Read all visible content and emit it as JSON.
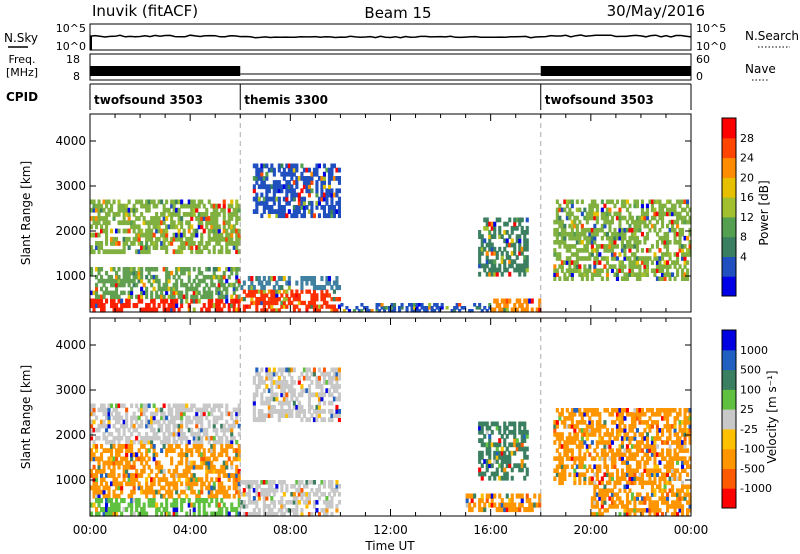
{
  "header": {
    "site": "Inuvik (fitACF)",
    "beam": "Beam 15",
    "date": "30/May/2016"
  },
  "summary": {
    "nsky_label": "N.Sky",
    "nsky_ticks": [
      "10^5",
      "10^0"
    ],
    "nsearch_label": "N.Search",
    "nsearch_ticks": [
      "10^5",
      "10^0"
    ],
    "freq_label_1": "Freq.",
    "freq_label_2": "[MHz]",
    "freq_ticks": [
      "18",
      "8"
    ],
    "nave_label": "Nave",
    "nave_ticks": [
      "60",
      "0"
    ],
    "cpid_label": "CPID",
    "cpid_segments": [
      {
        "name": "twofsound 3503",
        "start_hour": 0,
        "end_hour": 6
      },
      {
        "name": "themis 3300",
        "start_hour": 6,
        "end_hour": 18
      },
      {
        "name": "twofsound 3503",
        "start_hour": 18,
        "end_hour": 24
      }
    ]
  },
  "chart_data": [
    {
      "type": "heatmap",
      "name": "power",
      "ylabel": "Slant Range [km]",
      "xlabel": "",
      "xlim": [
        0,
        24
      ],
      "ylim": [
        200,
        4600
      ],
      "yticks": [
        "1000",
        "2000",
        "3000",
        "4000"
      ],
      "colorbar_label": "Power [dB]",
      "colorbar_ticks": [
        "28",
        "24",
        "20",
        "16",
        "12",
        "8",
        "4"
      ],
      "colorbar_colors": [
        "#0000e6",
        "#2050c0",
        "#3a8060",
        "#55a050",
        "#a0c030",
        "#e6c000",
        "#ff8c00",
        "#ff4500",
        "#ff0000"
      ],
      "regions": [
        {
          "t0": 0,
          "t1": 6,
          "r0": 200,
          "r1": 500,
          "color": "#ff2000"
        },
        {
          "t0": 0,
          "t1": 6,
          "r0": 500,
          "r1": 1200,
          "color": "#60a050"
        },
        {
          "t0": 0,
          "t1": 6,
          "r0": 1500,
          "r1": 2700,
          "color": "#80b040"
        },
        {
          "t0": 6,
          "t1": 10,
          "r0": 200,
          "r1": 700,
          "color": "#ff3000"
        },
        {
          "t0": 6,
          "t1": 10,
          "r0": 700,
          "r1": 1000,
          "color": "#4080a0"
        },
        {
          "t0": 6.5,
          "t1": 10,
          "r0": 2300,
          "r1": 3500,
          "color": "#2050c0"
        },
        {
          "t0": 15.5,
          "t1": 17.5,
          "r0": 1000,
          "r1": 2300,
          "color": "#3a8060"
        },
        {
          "t0": 16,
          "t1": 18,
          "r0": 200,
          "r1": 500,
          "color": "#ff8c00"
        },
        {
          "t0": 18.5,
          "t1": 24,
          "r0": 900,
          "r1": 2700,
          "color": "#80b040"
        },
        {
          "t0": 10,
          "t1": 16,
          "r0": 200,
          "r1": 400,
          "color": "#2050c0"
        }
      ]
    },
    {
      "type": "heatmap",
      "name": "velocity",
      "ylabel": "Slant Range [km]",
      "xlabel": "Time UT",
      "xlim": [
        0,
        24
      ],
      "ylim": [
        200,
        4600
      ],
      "xticks": [
        "00:00",
        "04:00",
        "08:00",
        "12:00",
        "16:00",
        "20:00",
        "00:00"
      ],
      "yticks": [
        "1000",
        "2000",
        "3000",
        "4000"
      ],
      "colorbar_label": "Velocity [m s⁻¹]",
      "colorbar_ticks": [
        "1000",
        "500",
        "100",
        "25",
        "-25",
        "-100",
        "-500",
        "-1000"
      ],
      "colorbar_colors": [
        "#ff0000",
        "#ff5a00",
        "#ff9600",
        "#ffc000",
        "#c8c8c8",
        "#60c040",
        "#3a8060",
        "#2060c0",
        "#0000e0"
      ],
      "regions": [
        {
          "t0": 0,
          "t1": 6,
          "r0": 1800,
          "r1": 2700,
          "color": "#c8c8c8"
        },
        {
          "t0": 0,
          "t1": 6,
          "r0": 600,
          "r1": 1800,
          "color": "#ff9600"
        },
        {
          "t0": 0,
          "t1": 6,
          "r0": 200,
          "r1": 600,
          "color": "#60c040"
        },
        {
          "t0": 6,
          "t1": 10,
          "r0": 200,
          "r1": 1000,
          "color": "#c8c8c8"
        },
        {
          "t0": 6.5,
          "t1": 10,
          "r0": 2300,
          "r1": 3500,
          "color": "#c8c8c8"
        },
        {
          "t0": 15.5,
          "t1": 17.5,
          "r0": 1000,
          "r1": 2300,
          "color": "#3a8060"
        },
        {
          "t0": 15,
          "t1": 18,
          "r0": 300,
          "r1": 700,
          "color": "#ff9600"
        },
        {
          "t0": 18.5,
          "t1": 24,
          "r0": 900,
          "r1": 2600,
          "color": "#ff9600"
        },
        {
          "t0": 20,
          "t1": 24,
          "r0": 200,
          "r1": 900,
          "color": "#ff9600"
        }
      ]
    }
  ]
}
